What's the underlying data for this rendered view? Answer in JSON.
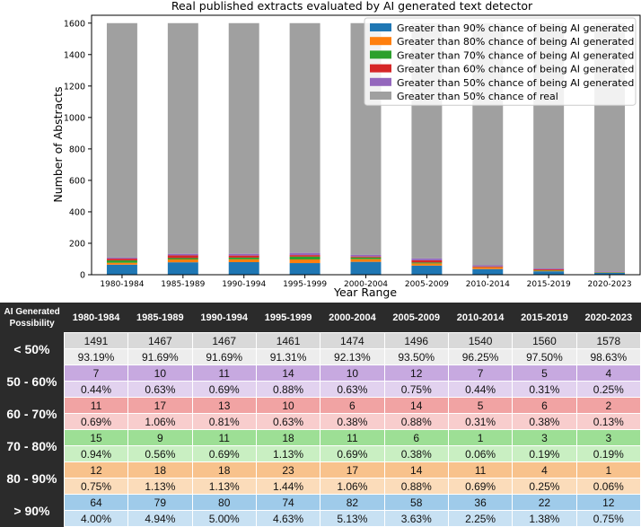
{
  "chart_data": {
    "type": "bar",
    "stacked": true,
    "title": "Real published extracts evaluated by AI generated text detector",
    "xlabel": "Year Range",
    "ylabel": "Number of Abstracts",
    "ylim": [
      0,
      1650
    ],
    "yticks": [
      0,
      200,
      400,
      600,
      800,
      1000,
      1200,
      1400,
      1600
    ],
    "legend_position": "top-right",
    "categories": [
      "1980-1984",
      "1985-1989",
      "1990-1994",
      "1995-1999",
      "2000-2004",
      "2005-2009",
      "2010-2014",
      "2015-2019",
      "2020-2023"
    ],
    "series": [
      {
        "name": "Greater than 90% chance of being AI generated",
        "color": "#1f77b4",
        "values": [
          64,
          79,
          80,
          74,
          82,
          58,
          36,
          22,
          12
        ]
      },
      {
        "name": "Greater than 80% chance of being AI generated",
        "color": "#ff7f0e",
        "values": [
          12,
          18,
          18,
          23,
          17,
          14,
          11,
          4,
          1
        ]
      },
      {
        "name": "Greater than 70% chance of being AI generated",
        "color": "#2ca02c",
        "values": [
          15,
          9,
          11,
          18,
          11,
          6,
          1,
          3,
          3
        ]
      },
      {
        "name": "Greater than 60% chance of being AI generated",
        "color": "#d62728",
        "values": [
          11,
          17,
          13,
          10,
          6,
          14,
          5,
          6,
          2
        ]
      },
      {
        "name": "Greater than 50% chance of being AI generated",
        "color": "#9467bd",
        "values": [
          7,
          10,
          11,
          14,
          10,
          12,
          7,
          5,
          4
        ]
      },
      {
        "name": "Greater than 50% chance of real",
        "color": "#a0a0a0",
        "values": [
          1491,
          1467,
          1467,
          1461,
          1474,
          1496,
          1540,
          1560,
          1578
        ]
      }
    ]
  },
  "table": {
    "corner_line1": "AI Generated",
    "corner_line2": "Possibility",
    "columns": [
      "1980-1984",
      "1985-1989",
      "1990-1994",
      "1995-1999",
      "2000-2004",
      "2005-2009",
      "2010-2014",
      "2015-2019",
      "2020-2023"
    ],
    "rows": [
      {
        "label": "< 50%",
        "color_count": "#d9d9d9",
        "color_pct": "#ededed",
        "counts": [
          "1491",
          "1467",
          "1467",
          "1461",
          "1474",
          "1496",
          "1540",
          "1560",
          "1578"
        ],
        "percents": [
          "93.19%",
          "91.69%",
          "91.69%",
          "91.31%",
          "92.13%",
          "93.50%",
          "96.25%",
          "97.50%",
          "98.63%"
        ]
      },
      {
        "label": "50 - 60%",
        "color_count": "#c7a9e0",
        "color_pct": "#e2d2ef",
        "counts": [
          "7",
          "10",
          "11",
          "14",
          "10",
          "12",
          "7",
          "5",
          "4"
        ],
        "percents": [
          "0.44%",
          "0.63%",
          "0.69%",
          "0.88%",
          "0.63%",
          "0.75%",
          "0.44%",
          "0.31%",
          "0.25%"
        ]
      },
      {
        "label": "60 - 70%",
        "color_count": "#f1a3a3",
        "color_pct": "#f8cdcd",
        "counts": [
          "11",
          "17",
          "13",
          "10",
          "6",
          "14",
          "5",
          "6",
          "2"
        ],
        "percents": [
          "0.69%",
          "1.06%",
          "0.81%",
          "0.63%",
          "0.38%",
          "0.88%",
          "0.31%",
          "0.38%",
          "0.13%"
        ]
      },
      {
        "label": "70 - 80%",
        "color_count": "#9ddf95",
        "color_pct": "#c9efc2",
        "counts": [
          "15",
          "9",
          "11",
          "18",
          "11",
          "6",
          "1",
          "3",
          "3"
        ],
        "percents": [
          "0.94%",
          "0.56%",
          "0.69%",
          "1.13%",
          "0.69%",
          "0.38%",
          "0.06%",
          "0.19%",
          "0.19%"
        ]
      },
      {
        "label": "80 - 90%",
        "color_count": "#f8c28c",
        "color_pct": "#fbdcba",
        "counts": [
          "12",
          "18",
          "18",
          "23",
          "17",
          "14",
          "11",
          "4",
          "1"
        ],
        "percents": [
          "0.75%",
          "1.13%",
          "1.13%",
          "1.44%",
          "1.06%",
          "0.88%",
          "0.69%",
          "0.25%",
          "0.06%"
        ]
      },
      {
        "label": "> 90%",
        "color_count": "#9fcbea",
        "color_pct": "#c8e1f3",
        "counts": [
          "64",
          "79",
          "80",
          "74",
          "82",
          "58",
          "36",
          "22",
          "12"
        ],
        "percents": [
          "4.00%",
          "4.94%",
          "5.00%",
          "4.63%",
          "5.13%",
          "3.63%",
          "2.25%",
          "1.38%",
          "0.75%"
        ]
      }
    ]
  }
}
